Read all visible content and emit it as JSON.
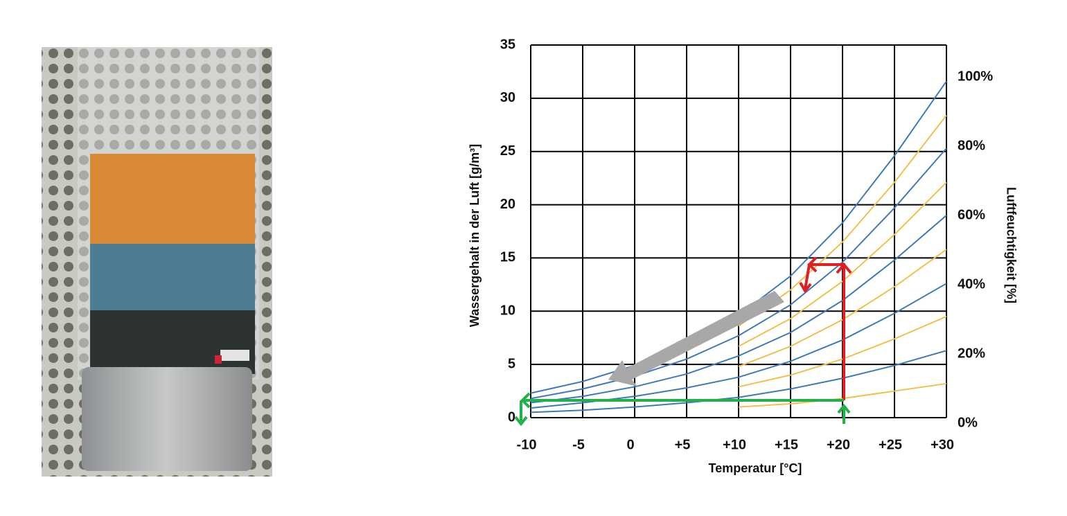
{
  "chart_data": {
    "type": "line",
    "xlabel": "Temperatur [°C]",
    "ylabel": "Wassergehalt in der Luft [g/m³]",
    "y2label": "Luftfeuchtigkeit [%]",
    "x": [
      -10,
      -5,
      0,
      5,
      10,
      15,
      20,
      25,
      30
    ],
    "xlim": [
      -10,
      30
    ],
    "xticks": [
      -10,
      -5,
      0,
      {
        "value": 5,
        "label": "+5"
      },
      {
        "value": 10,
        "label": "+10"
      },
      {
        "value": 15,
        "label": "+15"
      },
      {
        "value": 20,
        "label": "+20"
      },
      {
        "value": 25,
        "label": "+25"
      },
      {
        "value": 30,
        "label": "+30"
      }
    ],
    "ylim": [
      0,
      35
    ],
    "yticks": [
      0,
      5,
      10,
      15,
      20,
      25,
      30,
      35
    ],
    "y2lim": [
      0,
      107.7
    ],
    "y2ticks": [
      {
        "value": 0,
        "label": "0%"
      },
      {
        "value": 20,
        "label": "20%"
      },
      {
        "value": 40,
        "label": "40%"
      },
      {
        "value": 60,
        "label": "60%"
      },
      {
        "value": 80,
        "label": "80%"
      },
      {
        "value": 100,
        "label": "100%"
      }
    ],
    "grid": true,
    "grid_color": "#000000",
    "series": [
      {
        "color": "#3d7ab8",
        "values": [
          2.3,
          3.4,
          4.9,
          6.9,
          9.6,
          13.3,
          18.3,
          24.6,
          31.6
        ]
      },
      {
        "color": "#f0c04c",
        "values": [
          null,
          null,
          null,
          null,
          8.6,
          12.0,
          16.5,
          22.1,
          28.4
        ]
      },
      {
        "color": "#3d7ab8",
        "values": [
          1.8,
          2.7,
          3.9,
          5.5,
          7.7,
          10.6,
          14.6,
          19.7,
          25.3
        ]
      },
      {
        "color": "#f0c04c",
        "values": [
          null,
          null,
          null,
          null,
          6.7,
          9.3,
          12.8,
          17.2,
          22.1
        ]
      },
      {
        "color": "#3d7ab8",
        "values": [
          1.4,
          2.0,
          2.9,
          4.1,
          5.8,
          8.0,
          11.0,
          14.8,
          19.0
        ]
      },
      {
        "color": "#f0c04c",
        "values": [
          null,
          null,
          null,
          null,
          4.8,
          6.7,
          9.2,
          12.3,
          15.8
        ]
      },
      {
        "color": "#3d7ab8",
        "values": [
          0.9,
          1.4,
          2.0,
          2.8,
          3.8,
          5.3,
          7.3,
          9.8,
          12.6
        ]
      },
      {
        "color": "#f0c04c",
        "values": [
          null,
          null,
          null,
          null,
          2.9,
          4.0,
          5.5,
          7.4,
          9.5
        ]
      },
      {
        "color": "#3d7ab8",
        "values": [
          0.5,
          0.7,
          1.0,
          1.4,
          1.9,
          2.7,
          3.7,
          4.9,
          6.3
        ]
      },
      {
        "color": "#f0c04c",
        "values": [
          null,
          null,
          null,
          null,
          1.0,
          1.3,
          1.8,
          2.5,
          3.2
        ]
      }
    ]
  }
}
